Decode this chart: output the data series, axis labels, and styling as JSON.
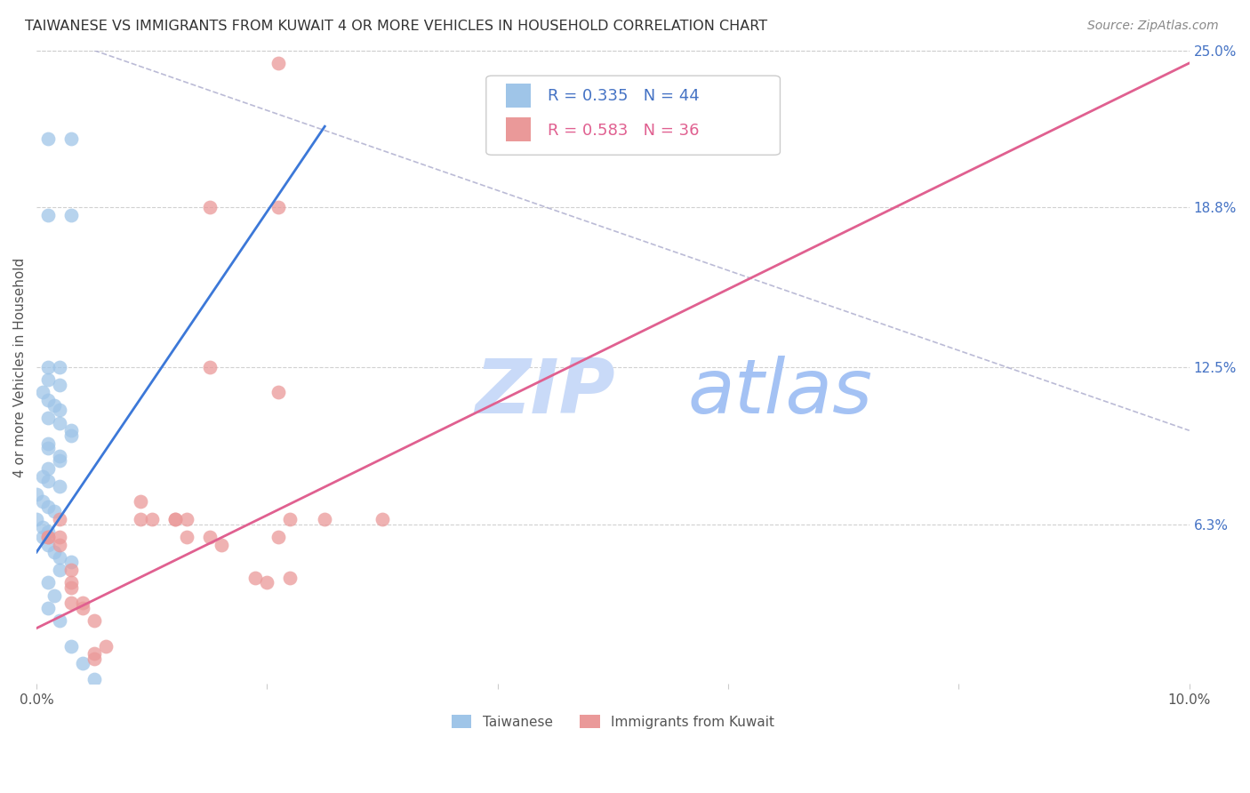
{
  "title": "TAIWANESE VS IMMIGRANTS FROM KUWAIT 4 OR MORE VEHICLES IN HOUSEHOLD CORRELATION CHART",
  "source": "Source: ZipAtlas.com",
  "ylabel": "4 or more Vehicles in Household",
  "x_min": 0.0,
  "x_max": 0.1,
  "y_min": 0.0,
  "y_max": 0.25,
  "x_tick_positions": [
    0.0,
    0.02,
    0.04,
    0.06,
    0.08,
    0.1
  ],
  "x_tick_labels": [
    "0.0%",
    "",
    "",
    "",
    "",
    "10.0%"
  ],
  "y_ticks_right": [
    0.063,
    0.125,
    0.188,
    0.25
  ],
  "y_tick_labels_right": [
    "6.3%",
    "12.5%",
    "18.8%",
    "25.0%"
  ],
  "legend_blue_r": "0.335",
  "legend_blue_n": "44",
  "legend_pink_r": "0.583",
  "legend_pink_n": "36",
  "blue_color": "#9fc5e8",
  "pink_color": "#ea9999",
  "blue_line_color": "#3c78d8",
  "pink_line_color": "#e06090",
  "diagonal_color": "#aaaacc",
  "watermark_zip_color": "#c9daf8",
  "watermark_atlas_color": "#a4c2f4",
  "blue_points_x": [
    0.001,
    0.003,
    0.001,
    0.003,
    0.001,
    0.002,
    0.001,
    0.002,
    0.0005,
    0.001,
    0.0015,
    0.002,
    0.001,
    0.002,
    0.003,
    0.003,
    0.001,
    0.001,
    0.002,
    0.002,
    0.001,
    0.0005,
    0.001,
    0.002,
    0.0,
    0.0005,
    0.001,
    0.0015,
    0.0,
    0.0005,
    0.001,
    0.0005,
    0.001,
    0.0015,
    0.002,
    0.003,
    0.002,
    0.001,
    0.0015,
    0.001,
    0.002,
    0.003,
    0.004,
    0.005
  ],
  "blue_points_y": [
    0.215,
    0.215,
    0.185,
    0.185,
    0.125,
    0.125,
    0.12,
    0.118,
    0.115,
    0.112,
    0.11,
    0.108,
    0.105,
    0.103,
    0.1,
    0.098,
    0.095,
    0.093,
    0.09,
    0.088,
    0.085,
    0.082,
    0.08,
    0.078,
    0.075,
    0.072,
    0.07,
    0.068,
    0.065,
    0.062,
    0.06,
    0.058,
    0.055,
    0.052,
    0.05,
    0.048,
    0.045,
    0.04,
    0.035,
    0.03,
    0.025,
    0.015,
    0.008,
    0.002
  ],
  "pink_points_x": [
    0.021,
    0.021,
    0.015,
    0.022,
    0.025,
    0.03,
    0.009,
    0.01,
    0.012,
    0.013,
    0.015,
    0.016,
    0.019,
    0.02,
    0.022,
    0.003,
    0.003,
    0.004,
    0.005,
    0.006,
    0.001,
    0.001,
    0.002,
    0.002,
    0.005,
    0.021,
    0.015,
    0.013,
    0.012,
    0.009,
    0.003,
    0.002,
    0.004,
    0.003,
    0.005,
    0.021
  ],
  "pink_points_y": [
    0.245,
    0.188,
    0.188,
    0.065,
    0.065,
    0.065,
    0.065,
    0.065,
    0.065,
    0.065,
    0.058,
    0.055,
    0.042,
    0.04,
    0.042,
    0.04,
    0.032,
    0.032,
    0.025,
    0.015,
    0.058,
    0.058,
    0.058,
    0.065,
    0.012,
    0.058,
    0.125,
    0.058,
    0.065,
    0.072,
    0.038,
    0.055,
    0.03,
    0.045,
    0.01,
    0.115
  ],
  "blue_line_x": [
    0.0,
    0.025
  ],
  "blue_line_y": [
    0.052,
    0.22
  ],
  "pink_line_x": [
    0.0,
    0.1
  ],
  "pink_line_y": [
    0.022,
    0.245
  ],
  "diag_line_x": [
    0.005,
    0.1
  ],
  "diag_line_y": [
    0.25,
    0.1
  ]
}
